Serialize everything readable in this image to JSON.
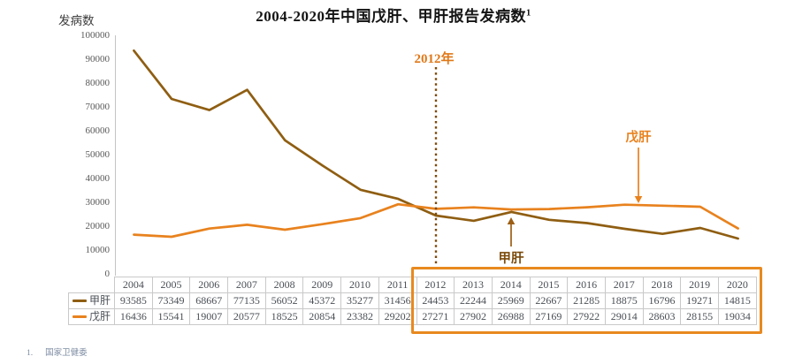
{
  "title": {
    "text": "2004-2020年中国戊肝、甲肝报告发病数",
    "superscript": "1"
  },
  "y_axis_label": "发病数",
  "annotations": {
    "year_marker": "2012年",
    "hep_e": "戊肝",
    "hep_a": "甲肝"
  },
  "footnote": {
    "marker": "1.",
    "text": "国家卫健委"
  },
  "colors": {
    "hep_a_line": "#8F5E12",
    "hep_e_line": "#E8821E",
    "year_marker_text": "#E07818",
    "dotted_line": "#7B4A0B",
    "hep_a_annotation_text": "#7B4A0B",
    "hep_a_arrow": "#9C5E14",
    "hep_e_arrow": "#E8821E",
    "highlight_box": "#E8891F",
    "axis_line": "#C4C4C4",
    "tick_text": "#595959",
    "table_border": "#C9C9C9",
    "table_text": "#4A4F55",
    "footnote_text": "#7E8DA3"
  },
  "chart_data": {
    "type": "line",
    "title": "2004-2020年中国戊肝、甲肝报告发病数",
    "ylabel": "发病数",
    "categories": [
      "2004",
      "2005",
      "2006",
      "2007",
      "2008",
      "2009",
      "2010",
      "2011",
      "2012",
      "2013",
      "2014",
      "2015",
      "2016",
      "2017",
      "2018",
      "2019",
      "2020"
    ],
    "series": [
      {
        "name": "甲肝",
        "key": "hep-a",
        "color": "#8F5E12",
        "values": [
          93585,
          73349,
          68667,
          77135,
          56052,
          45372,
          35277,
          31456,
          24453,
          22244,
          25969,
          22667,
          21285,
          18875,
          16796,
          19271,
          14815
        ]
      },
      {
        "name": "戊肝",
        "key": "hep-e",
        "color": "#E8821E",
        "values": [
          16436,
          15541,
          19007,
          20577,
          18525,
          20854,
          23382,
          29202,
          27271,
          27902,
          26988,
          27169,
          27922,
          29014,
          28603,
          28155,
          19034
        ]
      }
    ],
    "ylim": [
      0,
      100000
    ],
    "y_tick_step": 10000,
    "grid": false,
    "legend_position": "table-left-column",
    "vline_year": "2012",
    "highlight_years": [
      "2012",
      "2020"
    ]
  }
}
